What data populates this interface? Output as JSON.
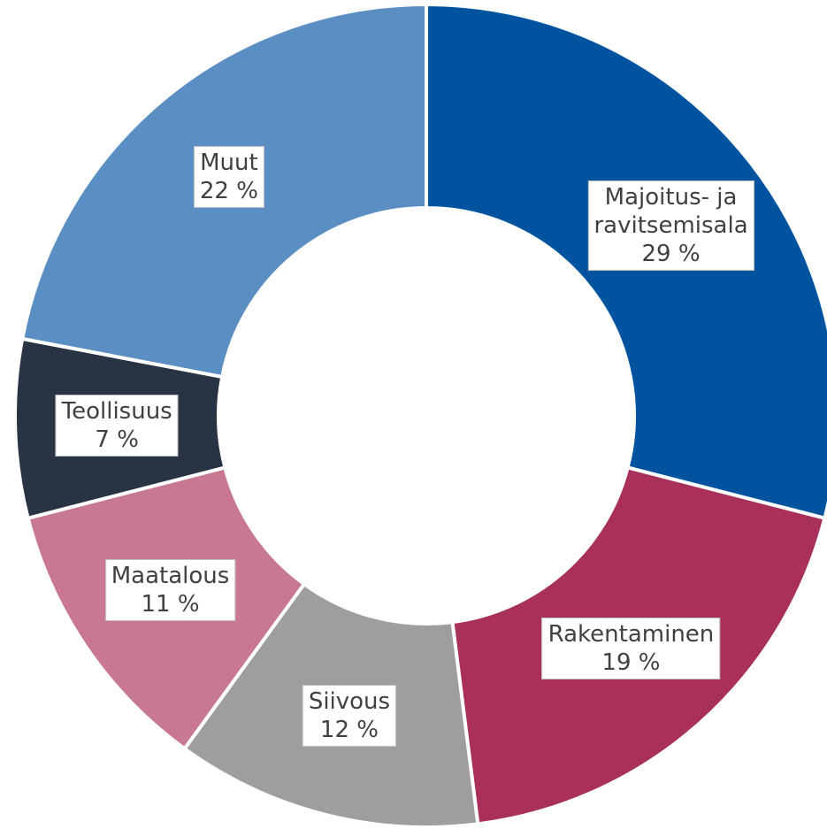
{
  "chart_data": {
    "type": "donut",
    "categories": [
      "Majoitus- ja ravitsemisala",
      "Rakentaminen",
      "Siivous",
      "Maatalous",
      "Teollisuus",
      "Muut"
    ],
    "values": [
      29,
      19,
      12,
      11,
      7,
      22
    ],
    "value_labels": [
      "29 %",
      "19 %",
      "12 %",
      "11 %",
      "7 %",
      "22 %"
    ],
    "colors": [
      "#00549f",
      "#a8305a",
      "#9e9e9e",
      "#c87890",
      "#283444",
      "#5b8fc4"
    ]
  }
}
